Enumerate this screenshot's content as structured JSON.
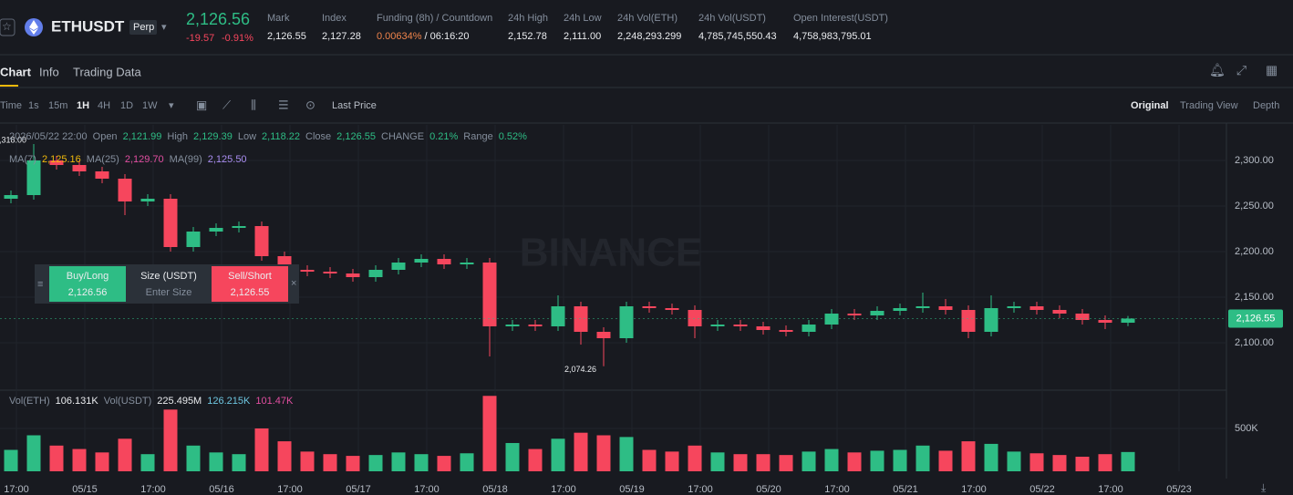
{
  "header": {
    "symbol": "ETHUSDT",
    "badge": "Perp",
    "price": "2,126.56",
    "change": "-19.57",
    "change_pct": "-0.91%",
    "stats": [
      {
        "label": "Mark",
        "value": "2,126.55"
      },
      {
        "label": "Index",
        "value": "2,127.28"
      },
      {
        "label": "Funding (8h) / Countdown",
        "value": "0.00634%",
        "extra": "/ 06:16:20"
      },
      {
        "label": "24h High",
        "value": "2,152.78"
      },
      {
        "label": "24h Low",
        "value": "2,111.00"
      },
      {
        "label": "24h Vol(ETH)",
        "value": "2,248,293.299"
      },
      {
        "label": "24h Vol(USDT)",
        "value": "4,785,745,550.43"
      },
      {
        "label": "Open Interest(USDT)",
        "value": "4,758,983,795.01"
      }
    ]
  },
  "tabs": [
    "Chart",
    "Info",
    "Trading Data"
  ],
  "toolbar": {
    "intervals": [
      "Time",
      "1s",
      "15m",
      "1H",
      "4H",
      "1D",
      "1W"
    ],
    "price_type": "Last Price",
    "views": [
      "Original",
      "Trading View",
      "Depth"
    ]
  },
  "legend": {
    "date": "2026/05/22 22:00",
    "items": [
      {
        "label": "Open",
        "value": "2,121.99"
      },
      {
        "label": "High",
        "value": "2,129.39"
      },
      {
        "label": "Low",
        "value": "2,118.22"
      },
      {
        "label": "Close",
        "value": "2,126.55"
      },
      {
        "label": "CHANGE",
        "value": "0.21%"
      },
      {
        "label": "Range",
        "value": "0.52%"
      }
    ],
    "ma": [
      {
        "label": "MA(7)",
        "value": "2,125.16",
        "color": "#f0b90b"
      },
      {
        "label": "MA(25)",
        "value": "2,129.70",
        "color": "#e14ea0"
      },
      {
        "label": "MA(99)",
        "value": "2,125.50",
        "color": "#a98df0"
      }
    ],
    "vol": [
      {
        "label": "Vol(ETH)",
        "value": "106.131K"
      },
      {
        "label": "Vol(USDT)",
        "value": "225.495M"
      },
      {
        "label": "",
        "value": "126.215K"
      },
      {
        "label": "",
        "value": "101.47K"
      }
    ]
  },
  "order_widget": {
    "buy": "Buy/Long",
    "buy_price": "2,126.56",
    "size": "Size (USDT)",
    "placeholder": "Enter Size",
    "sell": "Sell/Short",
    "sell_price": "2,126.55"
  },
  "chart_data": {
    "type": "candlestick",
    "watermark": "BINANCE",
    "open": [
      2258,
      2262,
      2300,
      2295,
      2288,
      2280,
      2255,
      2258,
      2205,
      2222,
      2226,
      2228,
      2195,
      2180,
      2178,
      2176,
      2172,
      2180,
      2188,
      2192,
      2186,
      2188,
      2118,
      2120,
      2118,
      2140,
      2112,
      2105,
      2140,
      2138,
      2136,
      2118,
      2120,
      2118,
      2114,
      2112,
      2120,
      2132,
      2130,
      2135,
      2138,
      2140,
      2136,
      2112,
      2138,
      2140,
      2136,
      2132,
      2125,
      2122
    ],
    "high": [
      2267,
      2318,
      2305,
      2300,
      2293,
      2285,
      2263,
      2263,
      2227,
      2231,
      2233,
      2233,
      2200,
      2185,
      2183,
      2181,
      2185,
      2193,
      2197,
      2197,
      2193,
      2193,
      2125,
      2125,
      2152,
      2145,
      2117,
      2145,
      2145,
      2143,
      2141,
      2125,
      2125,
      2123,
      2119,
      2125,
      2137,
      2137,
      2140,
      2143,
      2155,
      2148,
      2141,
      2152,
      2145,
      2145,
      2141,
      2137,
      2130,
      2129.39
    ],
    "low": [
      2253,
      2257,
      2290,
      2283,
      2275,
      2240,
      2250,
      2200,
      2200,
      2217,
      2221,
      2190,
      2175,
      2173,
      2171,
      2167,
      2167,
      2175,
      2183,
      2181,
      2181,
      2085,
      2113,
      2113,
      2113,
      2098,
      2074.26,
      2100,
      2133,
      2131,
      2105,
      2113,
      2113,
      2109,
      2107,
      2107,
      2115,
      2125,
      2125,
      2130,
      2133,
      2131,
      2105,
      2107,
      2133,
      2131,
      2127,
      2120,
      2115,
      2118.22
    ],
    "close": [
      2262,
      2300,
      2295,
      2288,
      2280,
      2255,
      2258,
      2205,
      2222,
      2226,
      2228,
      2195,
      2180,
      2178,
      2176,
      2172,
      2180,
      2188,
      2192,
      2186,
      2188,
      2118,
      2120,
      2118,
      2140,
      2112,
      2105,
      2140,
      2138,
      2136,
      2118,
      2120,
      2118,
      2114,
      2112,
      2120,
      2132,
      2130,
      2135,
      2138,
      2140,
      2136,
      2112,
      2138,
      2140,
      2136,
      2132,
      2125,
      2122,
      2126.55
    ],
    "volume": [
      250,
      420,
      300,
      260,
      220,
      380,
      200,
      720,
      300,
      220,
      200,
      500,
      350,
      230,
      200,
      180,
      190,
      220,
      200,
      180,
      210,
      880,
      330,
      260,
      380,
      450,
      420,
      400,
      250,
      230,
      300,
      220,
      200,
      200,
      190,
      230,
      260,
      220,
      240,
      250,
      300,
      240,
      350,
      320,
      230,
      210,
      190,
      170,
      200,
      225
    ],
    "up_color": "#2ebd85",
    "down_color": "#f6465d",
    "xlim": [
      -0.48,
      53.12
    ],
    "xticks": [
      {
        "value": 0.24,
        "label": "17:00"
      },
      {
        "value": 3.24,
        "label": "05/15"
      },
      {
        "value": 6.24,
        "label": "17:00"
      },
      {
        "value": 9.24,
        "label": "05/16"
      },
      {
        "value": 12.24,
        "label": "17:00"
      },
      {
        "value": 15.24,
        "label": "05/17"
      },
      {
        "value": 18.24,
        "label": "17:00"
      },
      {
        "value": 21.24,
        "label": "05/18"
      },
      {
        "value": 24.24,
        "label": "17:00"
      },
      {
        "value": 27.24,
        "label": "05/19"
      },
      {
        "value": 30.24,
        "label": "17:00"
      },
      {
        "value": 33.24,
        "label": "05/20"
      },
      {
        "value": 36.24,
        "label": "17:00"
      },
      {
        "value": 39.24,
        "label": "05/21"
      },
      {
        "value": 42.24,
        "label": "17:00"
      },
      {
        "value": 45.24,
        "label": "05/22"
      },
      {
        "value": 48.24,
        "label": "17:00"
      },
      {
        "value": 51.24,
        "label": "05/23"
      }
    ],
    "ylim": [
      2051,
      2339
    ],
    "yticks": [
      {
        "value": 2100,
        "label": "2,100.00"
      },
      {
        "value": 2150,
        "label": "2,150.00"
      },
      {
        "value": 2200,
        "label": "2,200.00"
      },
      {
        "value": 2250,
        "label": "2,250.00"
      },
      {
        "value": 2300,
        "label": "2,300.00"
      }
    ],
    "vol_ylim": [
      0,
      904
    ],
    "vol_yticks": [
      {
        "value": 500,
        "label": "500K"
      }
    ],
    "last_price": {
      "value": 2126.55,
      "label": "2,126.55"
    },
    "annotations": [
      {
        "x": 1,
        "value": 2318,
        "label": "2,318.00"
      },
      {
        "x": 26,
        "value": 2074.26,
        "label": "2,074.26"
      }
    ]
  }
}
